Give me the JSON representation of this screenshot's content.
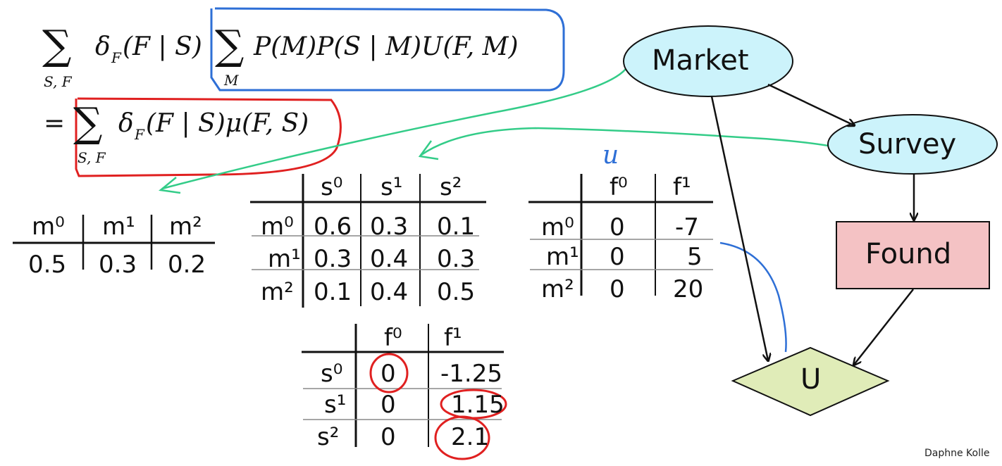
{
  "formula": {
    "line1_sum_sub": "S, F",
    "line1_delta": "δ",
    "line1_delta_sub": "F",
    "line1_arg": "(F | S)",
    "line1_inner_sub": "M",
    "line1_inner": "P(M)P(S | M)U(F, M)",
    "line2_eq": "=",
    "line2_sum_sub": "S, F",
    "line2_delta": "δ",
    "line2_delta_sub": "F",
    "line2_arg": "(F | S)μ(F, S)"
  },
  "nodes": {
    "market": "Market",
    "survey": "Survey",
    "found": "Found",
    "utility": "U"
  },
  "annotation_u": "u",
  "colors": {
    "market_fill": "#ccf3fb",
    "survey_fill": "#ccf3fb",
    "found_fill": "#f4c2c4",
    "utility_fill": "#e0ecb8",
    "blue_ink": "#2e6fd6",
    "red_ink": "#e02020",
    "green_ink": "#33cc88"
  },
  "prior_table": {
    "headers": [
      "m⁰",
      "m¹",
      "m²"
    ],
    "values": [
      "0.5",
      "0.3",
      "0.2"
    ]
  },
  "cpd_table": {
    "col_headers": [
      "s⁰",
      "s¹",
      "s²"
    ],
    "rows": [
      {
        "label": "m⁰",
        "values": [
          "0.6",
          "0.3",
          "0.1"
        ]
      },
      {
        "label": "m¹",
        "values": [
          "0.3",
          "0.4",
          "0.3"
        ]
      },
      {
        "label": "m²",
        "values": [
          "0.1",
          "0.4",
          "0.5"
        ]
      }
    ]
  },
  "utility_table": {
    "col_headers": [
      "f⁰",
      "f¹"
    ],
    "rows": [
      {
        "label": "m⁰",
        "values": [
          "0",
          "-7"
        ]
      },
      {
        "label": "m¹",
        "values": [
          "0",
          "5"
        ]
      },
      {
        "label": "m²",
        "values": [
          "0",
          "20"
        ]
      }
    ]
  },
  "mu_table": {
    "col_headers": [
      "f⁰",
      "f¹"
    ],
    "rows": [
      {
        "label": "s⁰",
        "values": [
          "0",
          "-1.25"
        ]
      },
      {
        "label": "s¹",
        "values": [
          "0",
          "1.15"
        ]
      },
      {
        "label": "s²",
        "values": [
          "0",
          "2.1"
        ]
      }
    ]
  },
  "footer": "Daphne Kolle"
}
